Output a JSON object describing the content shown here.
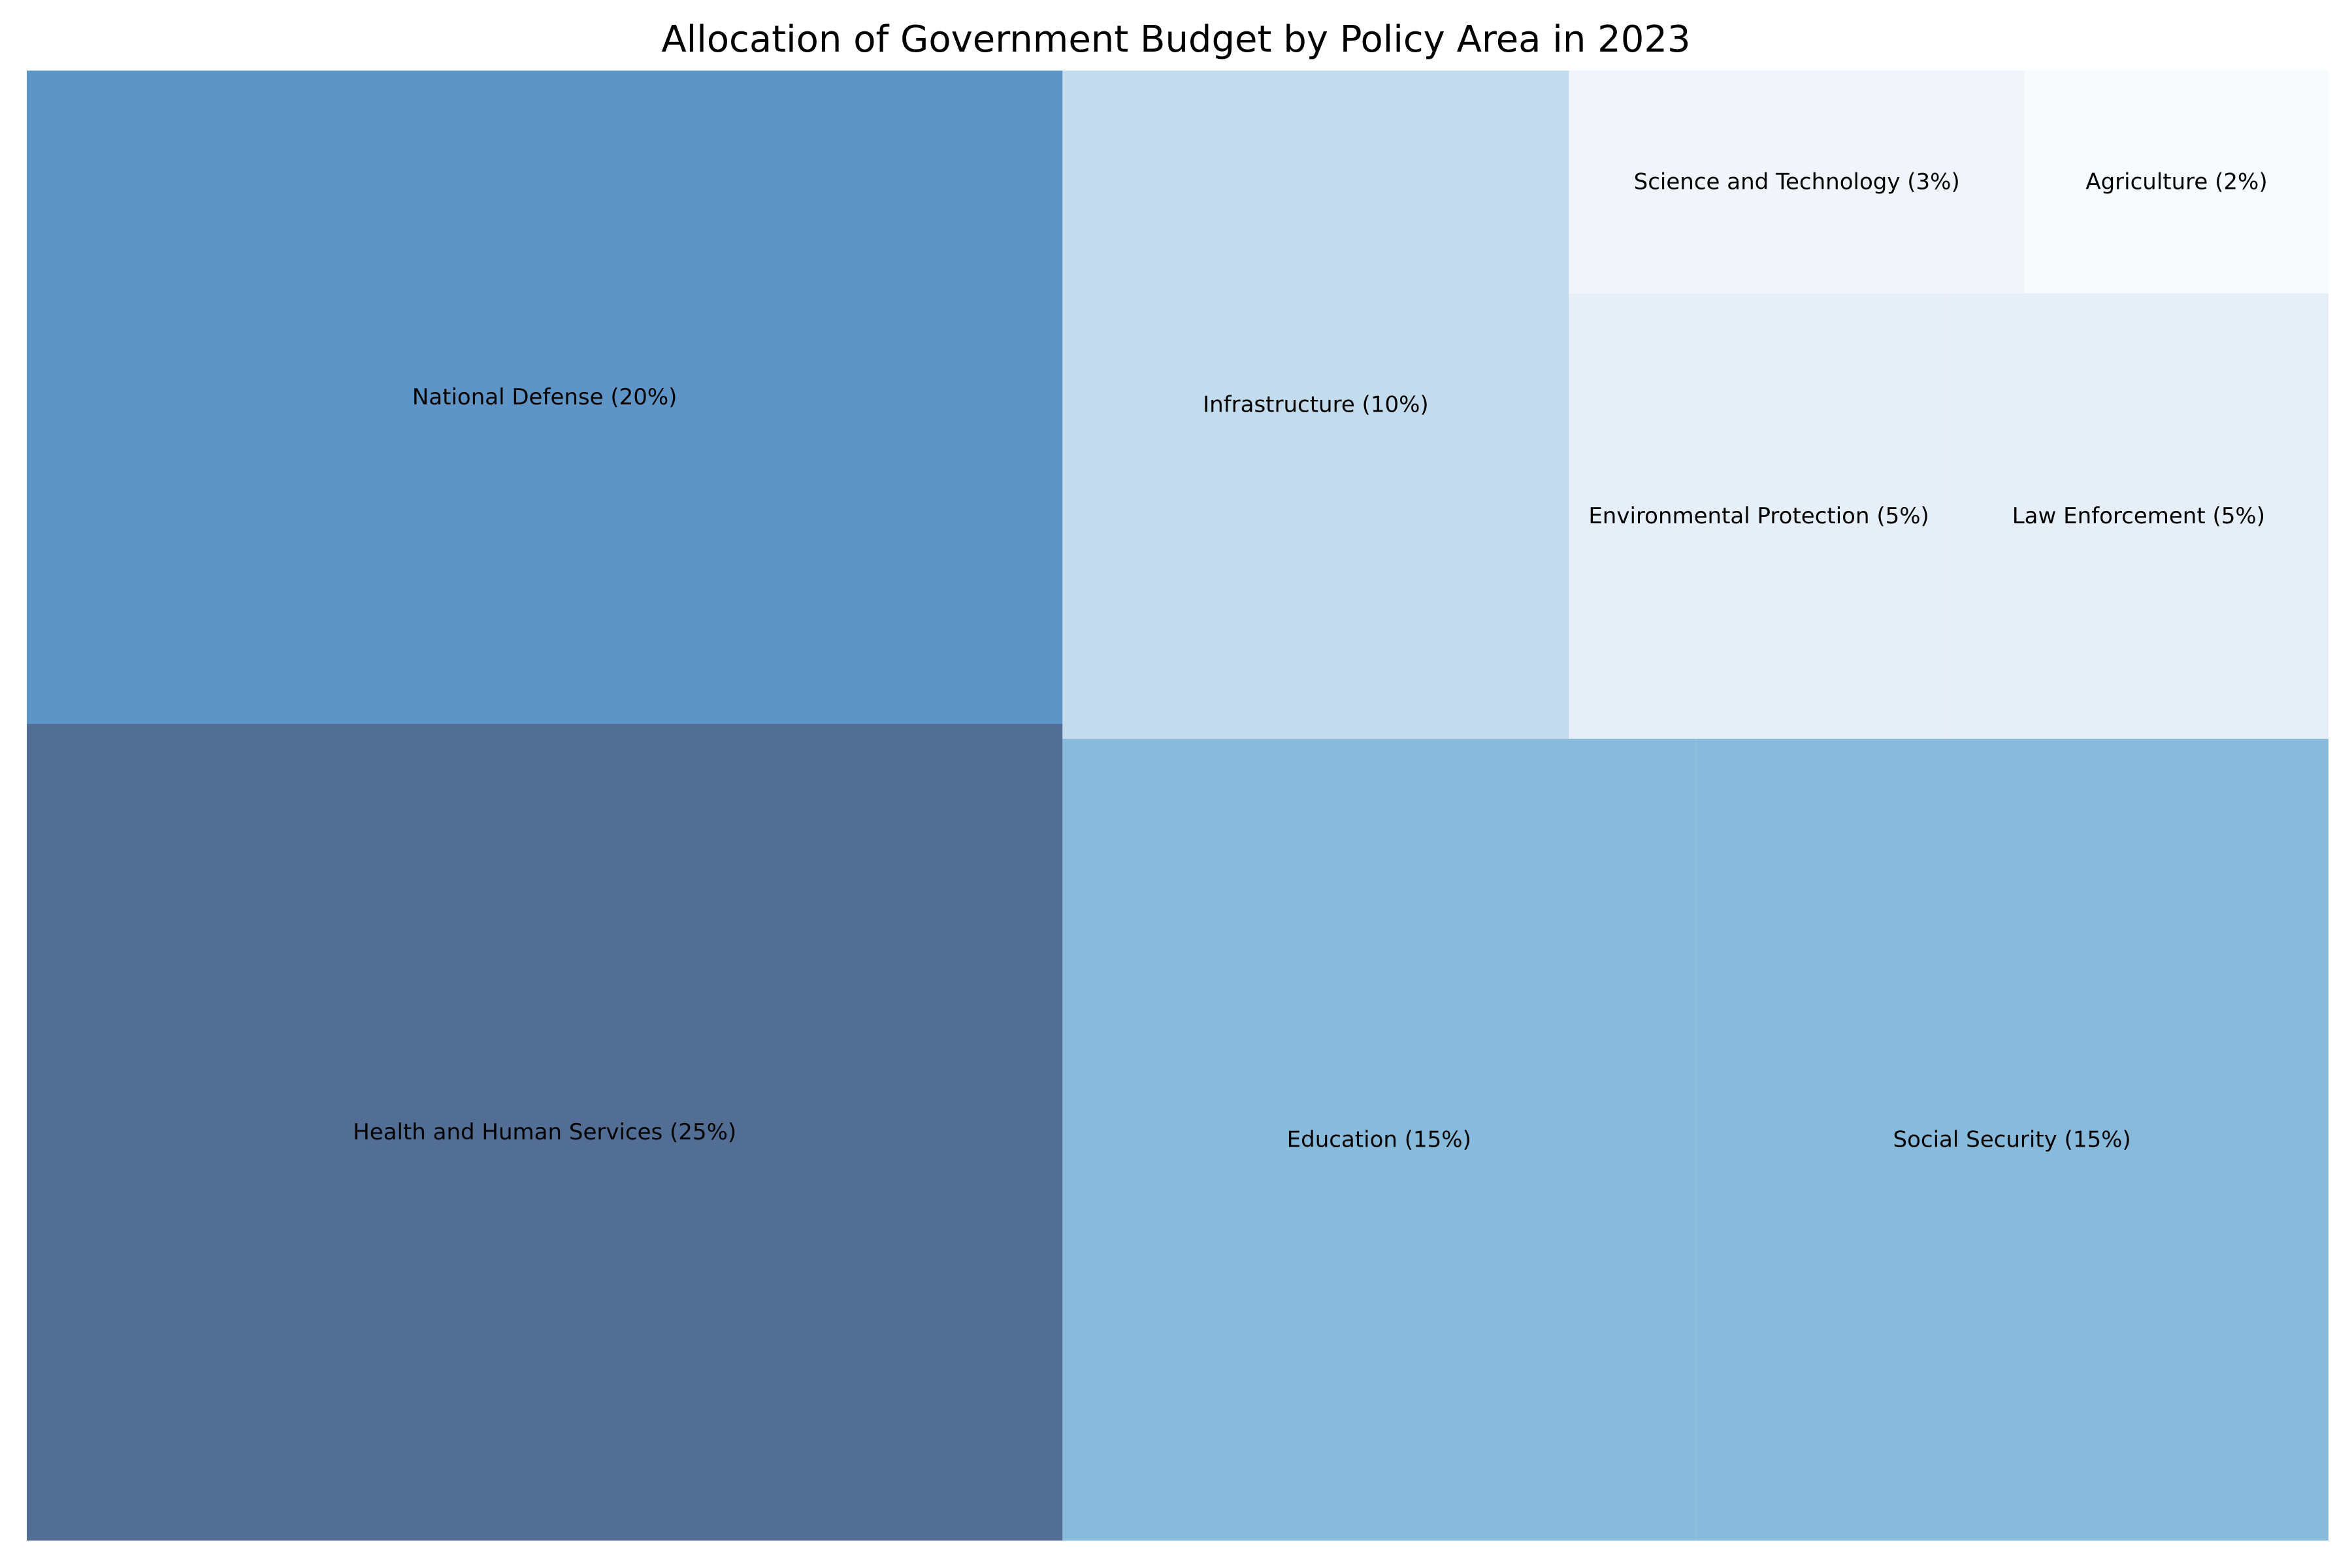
{
  "chart_data": {
    "type": "treemap",
    "title": "Allocation of Government Budget by Policy Area in 2023",
    "items": [
      {
        "name": "Health and Human Services",
        "value": 25,
        "label": "Health and Human Services (25%)",
        "color": "#526e94"
      },
      {
        "name": "National Defense",
        "value": 20,
        "label": "National Defense (20%)",
        "color": "#5f95c6"
      },
      {
        "name": "Education",
        "value": 15,
        "label": "Education (15%)",
        "color": "#88badb"
      },
      {
        "name": "Social Security",
        "value": 15,
        "label": "Social Security (15%)",
        "color": "#88badb"
      },
      {
        "name": "Infrastructure",
        "value": 10,
        "label": "Infrastructure (10%)",
        "color": "#c2dced"
      },
      {
        "name": "Environmental Protection",
        "value": 5,
        "label": "Environmental Protection (5%)",
        "color": "#e6eef8"
      },
      {
        "name": "Law Enforcement",
        "value": 5,
        "label": "Law Enforcement (5%)",
        "color": "#e6eef8"
      },
      {
        "name": "Science and Technology",
        "value": 3,
        "label": "Science and Technology (3%)",
        "color": "#f1f5fb"
      },
      {
        "name": "Agriculture",
        "value": 2,
        "label": "Agriculture (2%)",
        "color": "#f8fbfe"
      }
    ]
  }
}
